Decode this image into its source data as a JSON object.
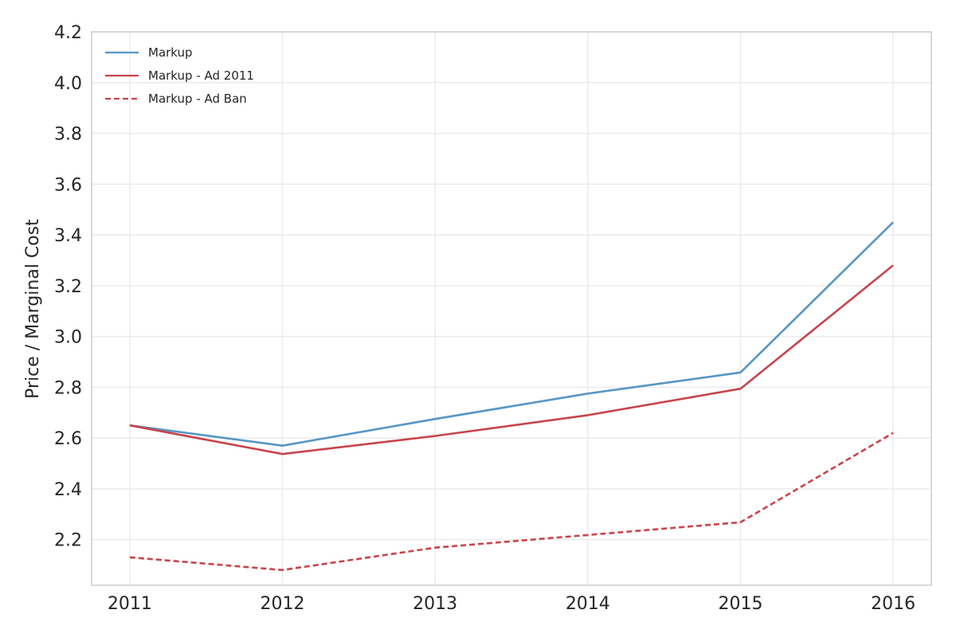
{
  "chart_data": {
    "type": "line",
    "ylabel": "Price / Marginal Cost",
    "x": [
      2011,
      2012,
      2013,
      2014,
      2015,
      2016
    ],
    "x_tick_labels": [
      "2011",
      "2012",
      "2013",
      "2014",
      "2015",
      "2016"
    ],
    "xlim": [
      2010.75,
      2016.25
    ],
    "ylim": [
      2.02,
      4.2
    ],
    "y_ticks": [
      2.2,
      2.4,
      2.6,
      2.8,
      3.0,
      3.2,
      3.4,
      3.6,
      3.8,
      4.0,
      4.2
    ],
    "y_tick_labels": [
      "2.2",
      "2.4",
      "2.6",
      "2.8",
      "3.0",
      "3.2",
      "3.4",
      "3.6",
      "3.8",
      "4.0",
      "4.2"
    ],
    "grid": true,
    "legend_position": "top-left",
    "series": [
      {
        "name": "Markup",
        "values": [
          2.65,
          2.57,
          2.675,
          2.775,
          2.858,
          3.45
        ],
        "color": "#5696c4",
        "style": "solid"
      },
      {
        "name": "Markup - Ad 2011",
        "values": [
          2.65,
          2.537,
          2.608,
          2.69,
          2.794,
          3.28
        ],
        "color": "#c8444a",
        "style": "solid"
      },
      {
        "name": "Markup - Ad Ban",
        "values": [
          2.13,
          2.08,
          2.168,
          2.218,
          2.268,
          2.62
        ],
        "color": "#c8444a",
        "style": "dashed"
      }
    ]
  }
}
